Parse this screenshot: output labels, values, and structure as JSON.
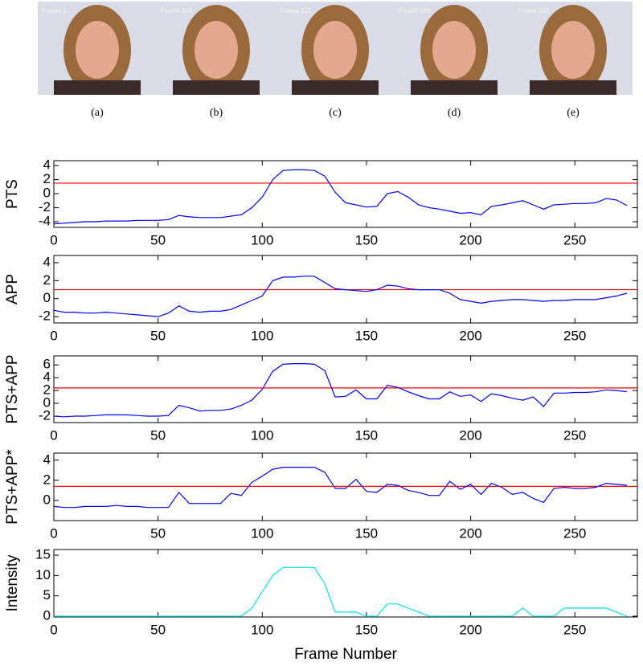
{
  "figure": {
    "panels": [
      {
        "caption": "(a)",
        "frame_label": "Frame 1"
      },
      {
        "caption": "(b)",
        "frame_label": "Frame 101"
      },
      {
        "caption": "(c)",
        "frame_label": "Frame 125"
      },
      {
        "caption": "(d)",
        "frame_label": "Frame 153"
      },
      {
        "caption": "(e)",
        "frame_label": "Frame 253"
      }
    ],
    "x_label": "Frame Number"
  },
  "chart_data": [
    {
      "type": "line",
      "y_label": "PTS",
      "xlim": [
        0,
        280
      ],
      "ylim": [
        -4.8,
        4.7
      ],
      "xticks": [
        0,
        50,
        100,
        150,
        200,
        250
      ],
      "yticks": [
        -4,
        -2,
        0,
        2,
        4
      ],
      "x": [
        0,
        5,
        10,
        15,
        20,
        25,
        30,
        35,
        40,
        45,
        50,
        55,
        60,
        65,
        70,
        75,
        80,
        85,
        90,
        95,
        100,
        105,
        110,
        115,
        120,
        125,
        130,
        135,
        140,
        145,
        150,
        155,
        160,
        165,
        170,
        175,
        180,
        185,
        190,
        195,
        200,
        205,
        210,
        215,
        220,
        225,
        230,
        235,
        240,
        245,
        250,
        255,
        260,
        265,
        270,
        275
      ],
      "series": [
        {
          "color": "#0000ff",
          "values": [
            -4.3,
            -4.2,
            -4.1,
            -4.0,
            -4.0,
            -3.9,
            -3.9,
            -3.9,
            -3.8,
            -3.8,
            -3.8,
            -3.7,
            -3.1,
            -3.3,
            -3.4,
            -3.4,
            -3.4,
            -3.2,
            -3.0,
            -2.0,
            -0.5,
            2.0,
            3.3,
            3.4,
            3.4,
            3.3,
            2.5,
            0.2,
            -1.3,
            -1.6,
            -1.9,
            -1.8,
            0.0,
            0.3,
            -0.5,
            -1.6,
            -2.0,
            -2.2,
            -2.5,
            -2.8,
            -2.7,
            -3.0,
            -1.8,
            -1.6,
            -1.3,
            -1.0,
            -1.6,
            -2.2,
            -1.6,
            -1.5,
            -1.4,
            -1.4,
            -1.3,
            -0.7,
            -0.9,
            -1.7
          ]
        }
      ],
      "threshold": 1.5,
      "threshold_color": "#ff0000"
    },
    {
      "type": "line",
      "y_label": "APP",
      "xlim": [
        0,
        280
      ],
      "ylim": [
        -2.7,
        4.8
      ],
      "xticks": [
        0,
        50,
        100,
        150,
        200,
        250
      ],
      "yticks": [
        -2,
        0,
        2,
        4
      ],
      "x": [
        0,
        5,
        10,
        15,
        20,
        25,
        30,
        35,
        40,
        45,
        50,
        55,
        60,
        65,
        70,
        75,
        80,
        85,
        90,
        95,
        100,
        105,
        110,
        115,
        120,
        125,
        130,
        135,
        140,
        145,
        150,
        155,
        160,
        165,
        170,
        175,
        180,
        185,
        190,
        195,
        200,
        205,
        210,
        215,
        220,
        225,
        230,
        235,
        240,
        245,
        250,
        255,
        260,
        265,
        270,
        275
      ],
      "series": [
        {
          "color": "#0000ff",
          "values": [
            -1.3,
            -1.5,
            -1.5,
            -1.6,
            -1.6,
            -1.5,
            -1.6,
            -1.7,
            -1.8,
            -1.9,
            -2.0,
            -1.6,
            -0.8,
            -1.4,
            -1.5,
            -1.4,
            -1.4,
            -1.2,
            -0.7,
            -0.2,
            0.3,
            2.0,
            2.4,
            2.4,
            2.5,
            2.5,
            1.8,
            1.1,
            1.0,
            0.9,
            0.8,
            1.0,
            1.5,
            1.4,
            1.1,
            1.0,
            1.0,
            1.0,
            0.6,
            -0.1,
            -0.3,
            -0.5,
            -0.3,
            -0.2,
            -0.1,
            -0.1,
            -0.2,
            -0.3,
            -0.2,
            -0.2,
            -0.1,
            -0.1,
            -0.1,
            0.1,
            0.3,
            0.6
          ]
        }
      ],
      "threshold": 1,
      "threshold_color": "#ff0000"
    },
    {
      "type": "line",
      "y_label": "PTS+APP",
      "xlim": [
        0,
        280
      ],
      "ylim": [
        -3,
        7.4
      ],
      "xticks": [
        0,
        50,
        100,
        150,
        200,
        250
      ],
      "yticks": [
        -2,
        0,
        2,
        4,
        6
      ],
      "x": [
        0,
        5,
        10,
        15,
        20,
        25,
        30,
        35,
        40,
        45,
        50,
        55,
        60,
        65,
        70,
        75,
        80,
        85,
        90,
        95,
        100,
        105,
        110,
        115,
        120,
        125,
        130,
        135,
        140,
        145,
        150,
        155,
        160,
        165,
        170,
        175,
        180,
        185,
        190,
        195,
        200,
        205,
        210,
        215,
        220,
        225,
        230,
        235,
        240,
        245,
        250,
        255,
        260,
        265,
        270,
        275
      ],
      "series": [
        {
          "color": "#0000ff",
          "values": [
            -2.0,
            -2.1,
            -2.0,
            -2.0,
            -1.9,
            -1.8,
            -1.8,
            -1.8,
            -1.9,
            -2.0,
            -2.0,
            -1.9,
            -0.3,
            -0.7,
            -1.2,
            -1.1,
            -1.1,
            -0.9,
            -0.3,
            0.5,
            2.2,
            5.0,
            6.1,
            6.2,
            6.2,
            6.1,
            5.1,
            1.0,
            1.1,
            2.1,
            0.7,
            0.7,
            2.8,
            2.5,
            1.8,
            1.2,
            0.7,
            0.7,
            1.8,
            1.1,
            1.3,
            0.3,
            1.5,
            1.2,
            0.8,
            0.5,
            1.0,
            -0.5,
            1.6,
            1.6,
            1.7,
            1.7,
            1.8,
            2.1,
            2.0,
            1.8
          ]
        }
      ],
      "threshold": 2.4,
      "threshold_color": "#ff0000"
    },
    {
      "type": "line",
      "y_label": "PTS+APP*",
      "xlim": [
        0,
        280
      ],
      "ylim": [
        -2,
        4.7
      ],
      "xticks": [
        0,
        50,
        100,
        150,
        200,
        250
      ],
      "yticks": [
        0,
        2,
        4
      ],
      "x": [
        0,
        5,
        10,
        15,
        20,
        25,
        30,
        35,
        40,
        45,
        50,
        55,
        60,
        65,
        70,
        75,
        80,
        85,
        90,
        95,
        100,
        105,
        110,
        115,
        120,
        125,
        130,
        135,
        140,
        145,
        150,
        155,
        160,
        165,
        170,
        175,
        180,
        185,
        190,
        195,
        200,
        205,
        210,
        215,
        220,
        225,
        230,
        235,
        240,
        245,
        250,
        255,
        260,
        265,
        270,
        275
      ],
      "series": [
        {
          "color": "#0000ff",
          "values": [
            -0.6,
            -0.7,
            -0.7,
            -0.6,
            -0.6,
            -0.6,
            -0.5,
            -0.6,
            -0.6,
            -0.7,
            -0.7,
            -0.7,
            0.8,
            -0.3,
            -0.3,
            -0.3,
            -0.3,
            0.7,
            0.5,
            1.8,
            2.4,
            3.1,
            3.3,
            3.3,
            3.3,
            3.3,
            2.8,
            1.2,
            1.2,
            2.1,
            0.9,
            0.8,
            1.6,
            1.5,
            1.0,
            0.8,
            0.5,
            0.5,
            1.9,
            1.1,
            1.6,
            0.6,
            1.7,
            1.3,
            0.6,
            0.8,
            0.2,
            -0.2,
            1.2,
            1.3,
            1.2,
            1.2,
            1.3,
            1.7,
            1.6,
            1.5
          ]
        }
      ],
      "threshold": 1.4,
      "threshold_color": "#ff0000"
    },
    {
      "type": "line",
      "y_label": "Intensity",
      "xlim": [
        0,
        280
      ],
      "ylim": [
        -0.2,
        16.4
      ],
      "xticks": [
        0,
        50,
        100,
        150,
        200,
        250
      ],
      "yticks": [
        0,
        5,
        10,
        15
      ],
      "x": [
        0,
        5,
        10,
        15,
        20,
        25,
        30,
        35,
        40,
        45,
        50,
        55,
        60,
        65,
        70,
        75,
        80,
        85,
        90,
        95,
        100,
        105,
        110,
        115,
        120,
        125,
        130,
        135,
        140,
        145,
        150,
        155,
        160,
        165,
        170,
        175,
        180,
        185,
        190,
        195,
        200,
        205,
        210,
        215,
        220,
        225,
        230,
        235,
        240,
        245,
        250,
        255,
        260,
        265,
        270,
        275
      ],
      "series": [
        {
          "color": "#00e5ee",
          "values": [
            0,
            0,
            0,
            0,
            0,
            0,
            0,
            0,
            0,
            0,
            0,
            0,
            0,
            0,
            0,
            0,
            0,
            0,
            0,
            2,
            6,
            10,
            12,
            12,
            12,
            12,
            8,
            1,
            1,
            1,
            0,
            0,
            3,
            3,
            2,
            1,
            0,
            0,
            0,
            0,
            0,
            0,
            0,
            0,
            0,
            2,
            0,
            0,
            0,
            2,
            2,
            2,
            2,
            2,
            1,
            0
          ]
        }
      ]
    }
  ]
}
